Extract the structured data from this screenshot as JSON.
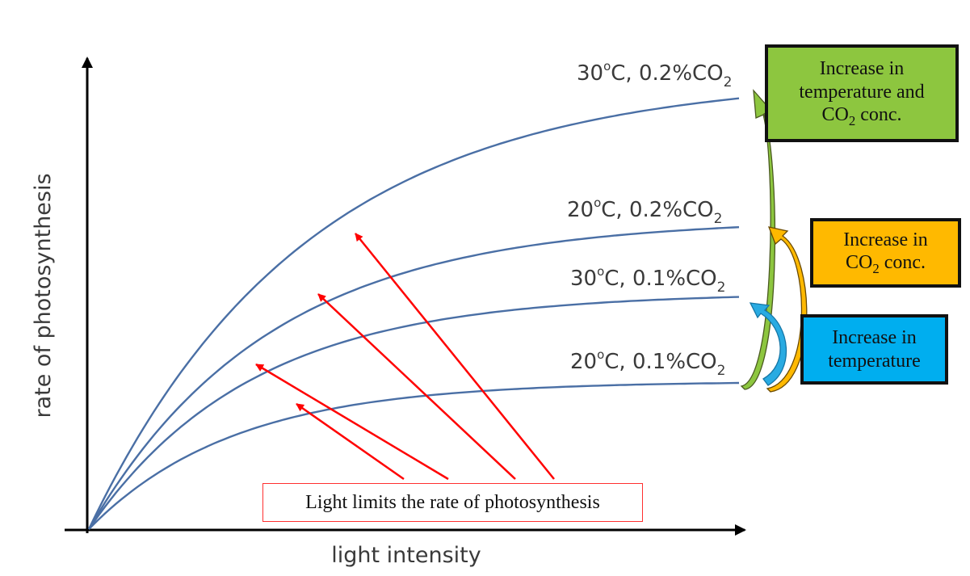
{
  "chart_data": {
    "type": "line",
    "title": "",
    "xlabel": "light intensity",
    "ylabel": "rate of photosynthesis",
    "x": [
      0,
      1,
      2,
      3,
      4,
      5,
      6,
      7,
      8,
      9,
      10
    ],
    "ylim": [
      0,
      1
    ],
    "xlim": [
      0,
      10
    ],
    "grid": false,
    "series": [
      {
        "name": "20°C, 0.1%CO₂",
        "y_max": 0.3,
        "rate": 0.45
      },
      {
        "name": "30°C, 0.1%CO₂",
        "y_max": 0.48,
        "rate": 0.4
      },
      {
        "name": "20°C, 0.2%CO₂",
        "y_max": 0.63,
        "rate": 0.36
      },
      {
        "name": "30°C, 0.2%CO₂",
        "y_max": 0.92,
        "rate": 0.3
      }
    ],
    "curve_labels": {
      "s1": {
        "pre": "20",
        "deg": "o",
        "mid": "C, 0.1%CO",
        "sub": "2"
      },
      "s2": {
        "pre": "30",
        "deg": "o",
        "mid": "C, 0.1%CO",
        "sub": "2"
      },
      "s3": {
        "pre": "20",
        "deg": "o",
        "mid": "C, 0.2%CO",
        "sub": "2"
      },
      "s4": {
        "pre": "30",
        "deg": "o",
        "mid": "C, 0.2%CO",
        "sub": "2"
      }
    },
    "annotations": {
      "note": "Light limits the rate of photosynthesis",
      "green_box": {
        "line1": "Increase in",
        "line2": "temperature and",
        "line3_pre": "CO",
        "line3_sub": "2",
        "line3_post": " conc."
      },
      "orange_box": {
        "line1": "Increase in",
        "line2_pre": "CO",
        "line2_sub": "2",
        "line2_post": " conc."
      },
      "blue_box": {
        "line1": "Increase in",
        "line2": "temperature"
      }
    },
    "colors": {
      "curve": "#4a6fa5",
      "note_arrows": "#ff0000",
      "green": "#8dc63f",
      "orange": "#ffb900",
      "blue": "#00aeef"
    }
  }
}
